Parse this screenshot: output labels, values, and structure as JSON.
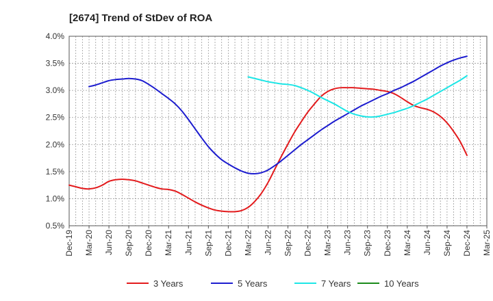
{
  "chart_data": {
    "type": "line",
    "title": "[2674]  Trend of StDev of ROA",
    "xlabel": "",
    "ylabel": "",
    "y_unit": "%",
    "ylim": [
      0.5,
      4.0
    ],
    "yticks": [
      "0.5%",
      "1.0%",
      "1.5%",
      "2.0%",
      "2.5%",
      "3.0%",
      "3.5%",
      "4.0%"
    ],
    "y_tick_values": [
      0.5,
      1.0,
      1.5,
      2.0,
      2.5,
      3.0,
      3.5,
      4.0
    ],
    "x_tick_labels": [
      "Dec-19",
      "Mar-20",
      "Jun-20",
      "Sep-20",
      "Dec-20",
      "Mar-21",
      "Jun-21",
      "Sep-21",
      "Dec-21",
      "Mar-22",
      "Jun-22",
      "Sep-22",
      "Dec-22",
      "Mar-23",
      "Jun-23",
      "Sep-23",
      "Dec-23",
      "Mar-24",
      "Jun-24",
      "Sep-24",
      "Dec-24",
      "Mar-25"
    ],
    "grid": true,
    "legend_position": "bottom",
    "series": [
      {
        "name": "3 Years",
        "color": "#e31a1c",
        "x": [
          "Dec-19",
          "Jan-20",
          "Feb-20",
          "Mar-20",
          "Apr-20",
          "May-20",
          "Jun-20",
          "Jul-20",
          "Aug-20",
          "Sep-20",
          "Oct-20",
          "Nov-20",
          "Dec-20",
          "Jan-21",
          "Feb-21",
          "Mar-21",
          "Apr-21",
          "May-21",
          "Jun-21",
          "Jul-21",
          "Aug-21",
          "Sep-21",
          "Oct-21",
          "Nov-21",
          "Dec-21",
          "Jan-22",
          "Feb-22",
          "Mar-22",
          "Apr-22",
          "May-22",
          "Jun-22",
          "Jul-22",
          "Aug-22",
          "Sep-22",
          "Oct-22",
          "Nov-22",
          "Dec-22",
          "Jan-23",
          "Feb-23",
          "Mar-23",
          "Apr-23",
          "May-23",
          "Jun-23",
          "Jul-23",
          "Aug-23",
          "Sep-23",
          "Oct-23",
          "Nov-23",
          "Dec-23",
          "Jan-24",
          "Feb-24",
          "Mar-24",
          "Apr-24",
          "May-24",
          "Jun-24",
          "Jul-24",
          "Aug-24",
          "Sep-24",
          "Oct-24",
          "Nov-24",
          "Dec-24"
        ],
        "values": [
          1.25,
          1.22,
          1.19,
          1.18,
          1.2,
          1.25,
          1.32,
          1.35,
          1.36,
          1.35,
          1.33,
          1.29,
          1.25,
          1.21,
          1.18,
          1.17,
          1.14,
          1.08,
          1.01,
          0.94,
          0.88,
          0.83,
          0.79,
          0.77,
          0.76,
          0.76,
          0.78,
          0.84,
          0.95,
          1.1,
          1.3,
          1.54,
          1.78,
          2.01,
          2.23,
          2.42,
          2.6,
          2.75,
          2.89,
          2.98,
          3.03,
          3.05,
          3.05,
          3.05,
          3.04,
          3.03,
          3.02,
          3.0,
          2.98,
          2.94,
          2.87,
          2.79,
          2.72,
          2.68,
          2.65,
          2.6,
          2.52,
          2.4,
          2.24,
          2.05,
          1.8
        ]
      },
      {
        "name": "5 Years",
        "color": "#1c1ccf",
        "x": [
          "Mar-20",
          "Apr-20",
          "May-20",
          "Jun-20",
          "Jul-20",
          "Aug-20",
          "Sep-20",
          "Oct-20",
          "Nov-20",
          "Dec-20",
          "Jan-21",
          "Feb-21",
          "Mar-21",
          "Apr-21",
          "May-21",
          "Jun-21",
          "Jul-21",
          "Aug-21",
          "Sep-21",
          "Oct-21",
          "Nov-21",
          "Dec-21",
          "Jan-22",
          "Feb-22",
          "Mar-22",
          "Apr-22",
          "May-22",
          "Jun-22",
          "Jul-22",
          "Aug-22",
          "Sep-22",
          "Oct-22",
          "Nov-22",
          "Dec-22",
          "Jan-23",
          "Feb-23",
          "Mar-23",
          "Apr-23",
          "May-23",
          "Jun-23",
          "Jul-23",
          "Aug-23",
          "Sep-23",
          "Oct-23",
          "Nov-23",
          "Dec-23",
          "Jan-24",
          "Feb-24",
          "Mar-24",
          "Apr-24",
          "May-24",
          "Jun-24",
          "Jul-24",
          "Aug-24",
          "Sep-24",
          "Oct-24",
          "Nov-24",
          "Dec-24"
        ],
        "values": [
          3.07,
          3.1,
          3.14,
          3.18,
          3.2,
          3.21,
          3.22,
          3.21,
          3.18,
          3.11,
          3.03,
          2.94,
          2.85,
          2.75,
          2.62,
          2.46,
          2.29,
          2.12,
          1.96,
          1.83,
          1.72,
          1.64,
          1.57,
          1.51,
          1.47,
          1.46,
          1.48,
          1.53,
          1.61,
          1.7,
          1.8,
          1.9,
          2.0,
          2.09,
          2.18,
          2.27,
          2.35,
          2.43,
          2.5,
          2.57,
          2.64,
          2.71,
          2.77,
          2.83,
          2.89,
          2.94,
          3.0,
          3.05,
          3.11,
          3.17,
          3.24,
          3.31,
          3.38,
          3.45,
          3.51,
          3.56,
          3.6,
          3.63
        ]
      },
      {
        "name": "7 Years",
        "color": "#1ce6e6",
        "x": [
          "Mar-22",
          "Apr-22",
          "May-22",
          "Jun-22",
          "Jul-22",
          "Aug-22",
          "Sep-22",
          "Oct-22",
          "Nov-22",
          "Dec-22",
          "Jan-23",
          "Feb-23",
          "Mar-23",
          "Apr-23",
          "May-23",
          "Jun-23",
          "Jul-23",
          "Aug-23",
          "Sep-23",
          "Oct-23",
          "Nov-23",
          "Dec-23",
          "Jan-24",
          "Feb-24",
          "Mar-24",
          "Apr-24",
          "May-24",
          "Jun-24",
          "Jul-24",
          "Aug-24",
          "Sep-24",
          "Oct-24",
          "Nov-24",
          "Dec-24"
        ],
        "values": [
          3.25,
          3.22,
          3.19,
          3.16,
          3.14,
          3.12,
          3.11,
          3.09,
          3.05,
          3.0,
          2.94,
          2.87,
          2.81,
          2.75,
          2.68,
          2.61,
          2.56,
          2.53,
          2.51,
          2.51,
          2.53,
          2.56,
          2.59,
          2.63,
          2.67,
          2.72,
          2.78,
          2.84,
          2.91,
          2.98,
          3.05,
          3.12,
          3.19,
          3.27
        ]
      },
      {
        "name": "10 Years",
        "color": "#1a8a1a",
        "x": [],
        "values": []
      }
    ]
  }
}
